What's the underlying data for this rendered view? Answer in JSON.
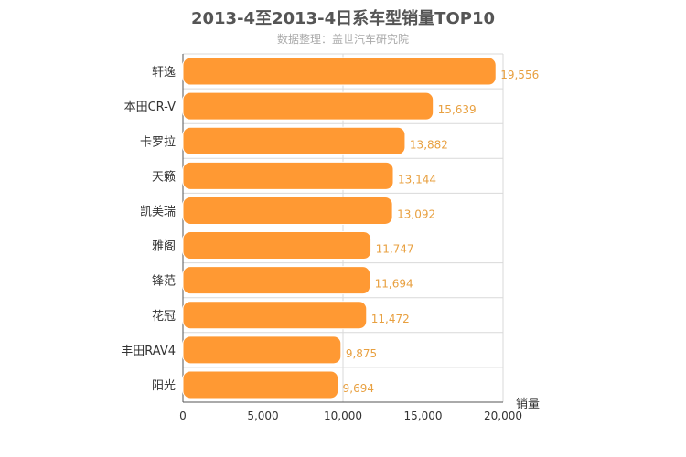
{
  "chart_data": {
    "type": "bar",
    "orientation": "horizontal",
    "title": "2013-4至2013-4日系车型销量TOP10",
    "subtitle": "数据整理：盖世汽车研究院",
    "categories": [
      "轩逸",
      "本田CR-V",
      "卡罗拉",
      "天籁",
      "凯美瑞",
      "雅阁",
      "锋范",
      "花冠",
      "丰田RAV4",
      "阳光"
    ],
    "values": [
      19556,
      15639,
      13882,
      13144,
      13092,
      11747,
      11694,
      11472,
      9875,
      9694
    ],
    "value_labels": [
      "19,556",
      "15,639",
      "13,882",
      "13,144",
      "13,092",
      "11,747",
      "11,694",
      "11,472",
      "9,875",
      "9,694"
    ],
    "xlim": [
      0,
      20000
    ],
    "xticks": [
      "0",
      "5,000",
      "10,000",
      "15,000",
      "20,000"
    ],
    "xlabel": "销量",
    "ylabel": "",
    "grid": true,
    "colors": {
      "bar": "#ff9933",
      "value_label": "#e8a040",
      "grid": "#d9d9d9"
    }
  }
}
